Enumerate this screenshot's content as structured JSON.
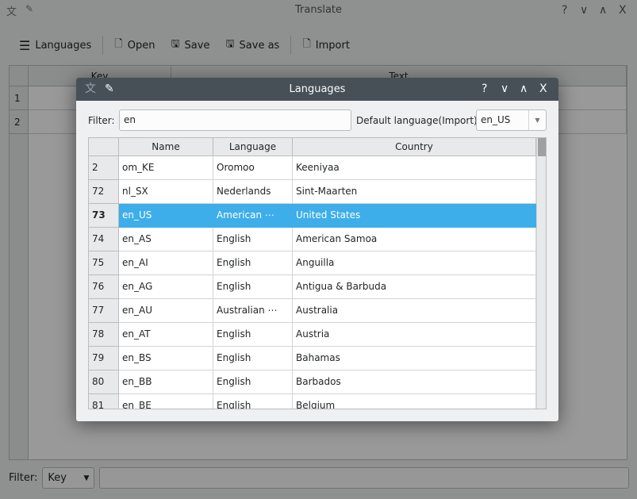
{
  "main_window": {
    "title": "Translate",
    "controls": [
      "?",
      "∨",
      "∧",
      "X"
    ],
    "toolbar": [
      {
        "label": "Languages",
        "icon": "menu-icon"
      },
      {
        "label": "Open",
        "icon": "open-file-icon"
      },
      {
        "label": "Save",
        "icon": "save-icon"
      },
      {
        "label": "Save as",
        "icon": "save-as-icon"
      },
      {
        "label": "Import",
        "icon": "import-icon"
      }
    ],
    "table": {
      "headers": [
        "Key",
        "Text"
      ],
      "rows": [
        "1",
        "2"
      ]
    },
    "filter": {
      "label": "Filter:",
      "field": "Key",
      "value": ""
    }
  },
  "dialog": {
    "title": "Languages",
    "controls": [
      "?",
      "∨",
      "∧",
      "X"
    ],
    "filter_label": "Filter:",
    "filter_value": "en",
    "default_label": "Default language(Import):",
    "default_value": "en_US",
    "headers": [
      "Name",
      "Language",
      "Country"
    ],
    "rows": [
      [
        "2",
        "om_KE",
        "Oromoo",
        "Keeniyaa"
      ],
      [
        "72",
        "nl_SX",
        "Nederlands",
        "Sint-Maarten"
      ],
      [
        "73",
        "en_US",
        "American ⋯",
        "United States"
      ],
      [
        "74",
        "en_AS",
        "English",
        "American Samoa"
      ],
      [
        "75",
        "en_AI",
        "English",
        "Anguilla"
      ],
      [
        "76",
        "en_AG",
        "English",
        "Antigua & Barbuda"
      ],
      [
        "77",
        "en_AU",
        "Australian ⋯",
        "Australia"
      ],
      [
        "78",
        "en_AT",
        "English",
        "Austria"
      ],
      [
        "79",
        "en_BS",
        "English",
        "Bahamas"
      ],
      [
        "80",
        "en_BB",
        "English",
        "Barbados"
      ],
      [
        "81",
        "en_BE",
        "English",
        "Belgium"
      ]
    ],
    "selected_row": 2,
    "selection_color": "#3daee9"
  }
}
